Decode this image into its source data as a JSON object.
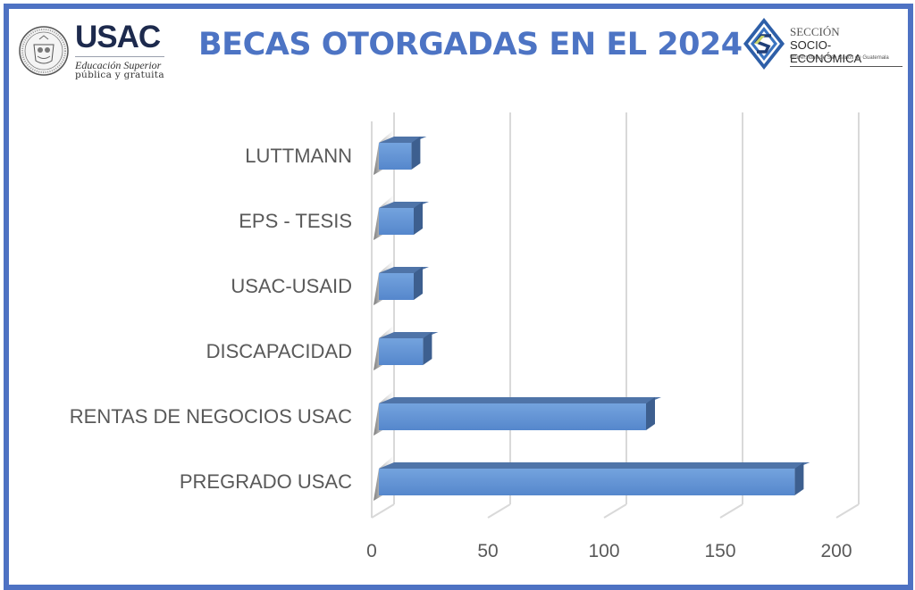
{
  "header": {
    "left_logo": {
      "name": "USAC",
      "tagline_1": "Educación Superior",
      "tagline_2": "pública y gratuita"
    },
    "title": "BECAS OTORGADAS EN EL 2024",
    "right_logo": {
      "line_1": "SECCIÓN",
      "line_2": "SOCIO-ECONÓMICA",
      "line_3": "Universidad de San Carlos de Guatemala"
    }
  },
  "colors": {
    "frame": "#4e72c3",
    "title": "#4d74c4",
    "bar_front": "#5f8fd4",
    "bar_top": "#4f74a8",
    "bar_side": "#3d5f8f",
    "grid": "#d9d9d9",
    "label": "#595959"
  },
  "chart_data": {
    "type": "bar",
    "orientation": "horizontal",
    "style": "3d-clustered-bar",
    "title": "BECAS OTORGADAS EN EL 2024",
    "xlabel": "",
    "ylabel": "",
    "categories": [
      "LUTTMANN",
      "EPS - TESIS",
      "USAC-USAID",
      "DISCAPACIDAD",
      "RENTAS DE NEGOCIOS USAC",
      "PREGRADO USAC"
    ],
    "values": [
      14,
      15,
      15,
      19,
      115,
      179
    ],
    "xlim": [
      0,
      200
    ],
    "x_ticks": [
      "0",
      "50",
      "100",
      "150",
      "200"
    ],
    "grid": true,
    "legend": "none"
  }
}
